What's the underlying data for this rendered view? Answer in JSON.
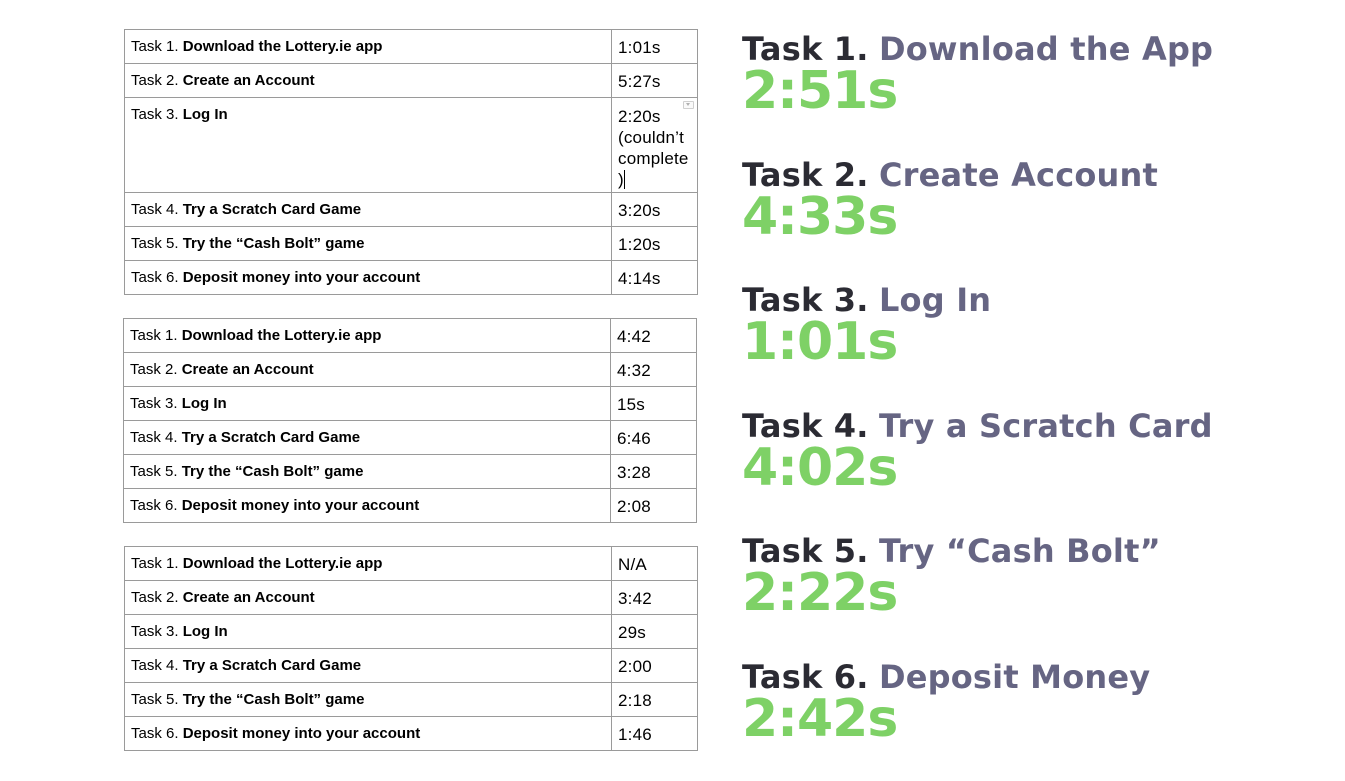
{
  "tables": [
    {
      "rows": [
        {
          "num": "Task 1.",
          "name": "Download the Lottery.ie app",
          "time": "1:01s"
        },
        {
          "num": "Task 2.",
          "name": "Create an Account",
          "time": "5:27s"
        },
        {
          "num": "Task 3.",
          "name": "Log In",
          "time": "2:20s (couldn’t complete )"
        },
        {
          "num": "Task 4.",
          "name": "Try a Scratch Card Game",
          "time": "3:20s"
        },
        {
          "num": "Task 5.",
          "name": "Try the “Cash Bolt” game",
          "time": "1:20s"
        },
        {
          "num": "Task 6.",
          "name": "Deposit money into your account",
          "time": "4:14s"
        }
      ]
    },
    {
      "rows": [
        {
          "num": "Task 1.",
          "name": "Download the Lottery.ie app",
          "time": "4:42"
        },
        {
          "num": "Task 2.",
          "name": "Create an Account",
          "time": "4:32"
        },
        {
          "num": "Task 3.",
          "name": "Log In",
          "time": "15s"
        },
        {
          "num": "Task 4.",
          "name": "Try a Scratch Card Game",
          "time": "6:46"
        },
        {
          "num": "Task 5.",
          "name": "Try the “Cash Bolt” game",
          "time": "3:28"
        },
        {
          "num": "Task 6.",
          "name": "Deposit money into your account",
          "time": "2:08"
        }
      ]
    },
    {
      "rows": [
        {
          "num": "Task 1.",
          "name": "Download the Lottery.ie app",
          "time": "N/A"
        },
        {
          "num": "Task 2.",
          "name": "Create an Account",
          "time": "3:42"
        },
        {
          "num": "Task 3.",
          "name": "Log In",
          "time": "29s"
        },
        {
          "num": "Task 4.",
          "name": "Try a Scratch Card Game",
          "time": "2:00"
        },
        {
          "num": "Task 5.",
          "name": "Try the “Cash Bolt” game",
          "time": "2:18"
        },
        {
          "num": "Task 6.",
          "name": "Deposit money into your account",
          "time": "1:46"
        }
      ]
    }
  ],
  "summary": [
    {
      "prefix": "Task 1.",
      "title": "Download the App",
      "value": "2:51s"
    },
    {
      "prefix": "Task 2.",
      "title": "Create Account",
      "value": "4:33s"
    },
    {
      "prefix": "Task 3.",
      "title": "Log In",
      "value": "1:01s"
    },
    {
      "prefix": "Task 4.",
      "title": "Try a Scratch Card",
      "value": "4:02s"
    },
    {
      "prefix": "Task 5.",
      "title": "Try “Cash Bolt”",
      "value": "2:22s"
    },
    {
      "prefix": "Task 6.",
      "title": "Deposit Money",
      "value": "2:42s"
    }
  ],
  "colors": {
    "prefix": "#2b2b33",
    "title": "#666583",
    "value": "#7ed166",
    "border": "#9a9a9a"
  }
}
